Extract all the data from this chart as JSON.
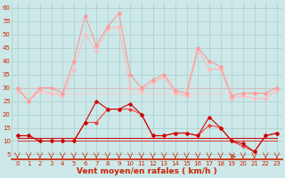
{
  "background_color": "#cce8e8",
  "grid_color": "#aacccc",
  "xlabel": "Vent moyen/en rafales ( km/h )",
  "xlabel_color": "#cc2200",
  "xlabel_fontsize": 6.5,
  "yticks": [
    5,
    10,
    15,
    20,
    25,
    30,
    35,
    40,
    45,
    50,
    55,
    60
  ],
  "xticks": [
    0,
    1,
    2,
    3,
    4,
    5,
    6,
    7,
    8,
    9,
    10,
    11,
    12,
    13,
    14,
    15,
    16,
    17,
    18,
    19,
    20,
    21,
    22,
    23
  ],
  "ylim": [
    3,
    62
  ],
  "xlim": [
    -0.5,
    23.5
  ],
  "series": [
    {
      "name": "rafales_high",
      "x": [
        0,
        1,
        2,
        3,
        4,
        5,
        6,
        7,
        8,
        9,
        10,
        11,
        12,
        13,
        14,
        15,
        16,
        17,
        18,
        19,
        20,
        21,
        22,
        23
      ],
      "y": [
        30,
        25,
        30,
        30,
        28,
        40,
        57,
        46,
        53,
        58,
        35,
        30,
        33,
        35,
        29,
        28,
        45,
        40,
        38,
        27,
        28,
        28,
        28,
        30
      ],
      "color": "#ff9999",
      "linewidth": 0.8,
      "marker": "D",
      "markersize": 1.8,
      "zorder": 3
    },
    {
      "name": "rafales_low",
      "x": [
        0,
        1,
        2,
        3,
        4,
        5,
        6,
        7,
        8,
        9,
        10,
        11,
        12,
        13,
        14,
        15,
        16,
        17,
        18,
        19,
        20,
        21,
        22,
        23
      ],
      "y": [
        29,
        25,
        29,
        28,
        27,
        37,
        50,
        44,
        52,
        53,
        30,
        29,
        32,
        34,
        28,
        27,
        44,
        37,
        37,
        26,
        27,
        26,
        26,
        29
      ],
      "color": "#ffbbbb",
      "linewidth": 0.8,
      "marker": "D",
      "markersize": 1.8,
      "zorder": 2
    },
    {
      "name": "moyen_flat_upper",
      "x": [
        0,
        1,
        2,
        3,
        4,
        5,
        6,
        7,
        8,
        9,
        10,
        11,
        12,
        13,
        14,
        15,
        16,
        17,
        18,
        19,
        20,
        21,
        22,
        23
      ],
      "y": [
        30,
        30,
        30,
        30,
        30,
        30,
        30,
        30,
        30,
        30,
        30,
        30,
        30,
        30,
        30,
        30,
        30,
        30,
        30,
        30,
        30,
        30,
        30,
        30
      ],
      "color": "#ffbbbb",
      "linewidth": 1.0,
      "marker": null,
      "markersize": 0,
      "zorder": 1
    },
    {
      "name": "moyen_flat_lower",
      "x": [
        0,
        1,
        2,
        3,
        4,
        5,
        6,
        7,
        8,
        9,
        10,
        11,
        12,
        13,
        14,
        15,
        16,
        17,
        18,
        19,
        20,
        21,
        22,
        23
      ],
      "y": [
        28,
        28,
        28,
        28,
        28,
        28,
        28,
        28,
        28,
        28,
        28,
        28,
        28,
        28,
        28,
        28,
        28,
        28,
        28,
        28,
        28,
        28,
        28,
        28
      ],
      "color": "#ffcccc",
      "linewidth": 0.8,
      "marker": null,
      "markersize": 0,
      "zorder": 1
    },
    {
      "name": "moyen_main",
      "x": [
        0,
        1,
        2,
        3,
        4,
        5,
        6,
        7,
        8,
        9,
        10,
        11,
        12,
        13,
        14,
        15,
        16,
        17,
        18,
        19,
        20,
        21,
        22,
        23
      ],
      "y": [
        12,
        12,
        10,
        10,
        10,
        10,
        17,
        25,
        22,
        22,
        24,
        20,
        12,
        12,
        13,
        13,
        12,
        19,
        15,
        10,
        9,
        6,
        12,
        13
      ],
      "color": "#cc0000",
      "linewidth": 0.8,
      "marker": "D",
      "markersize": 1.8,
      "zorder": 5
    },
    {
      "name": "moyen_secondary",
      "x": [
        0,
        1,
        2,
        3,
        4,
        5,
        6,
        7,
        8,
        9,
        10,
        11,
        12,
        13,
        14,
        15,
        16,
        17,
        18,
        19,
        20,
        21,
        22,
        23
      ],
      "y": [
        12,
        12,
        10,
        10,
        10,
        10,
        17,
        17,
        22,
        22,
        22,
        20,
        12,
        12,
        13,
        13,
        12,
        16,
        15,
        10,
        8,
        6,
        12,
        13
      ],
      "color": "#ee4444",
      "linewidth": 0.8,
      "marker": "D",
      "markersize": 1.8,
      "zorder": 4
    },
    {
      "name": "flat_red_upper",
      "x": [
        0,
        1,
        2,
        3,
        4,
        5,
        6,
        7,
        8,
        9,
        10,
        11,
        12,
        13,
        14,
        15,
        16,
        17,
        18,
        19,
        20,
        21,
        22,
        23
      ],
      "y": [
        11,
        11,
        11,
        11,
        11,
        11,
        11,
        11,
        11,
        11,
        11,
        11,
        11,
        11,
        11,
        11,
        11,
        11,
        11,
        11,
        11,
        11,
        11,
        11
      ],
      "color": "#cc1111",
      "linewidth": 0.8,
      "marker": null,
      "markersize": 0,
      "zorder": 3
    },
    {
      "name": "flat_red_lower",
      "x": [
        0,
        1,
        2,
        3,
        4,
        5,
        6,
        7,
        8,
        9,
        10,
        11,
        12,
        13,
        14,
        15,
        16,
        17,
        18,
        19,
        20,
        21,
        22,
        23
      ],
      "y": [
        10,
        10,
        10,
        10,
        10,
        10,
        10,
        10,
        10,
        10,
        10,
        10,
        10,
        10,
        10,
        10,
        10,
        10,
        10,
        10,
        10,
        10,
        10,
        10
      ],
      "color": "#dd3333",
      "linewidth": 0.7,
      "marker": null,
      "markersize": 0,
      "zorder": 2
    }
  ]
}
